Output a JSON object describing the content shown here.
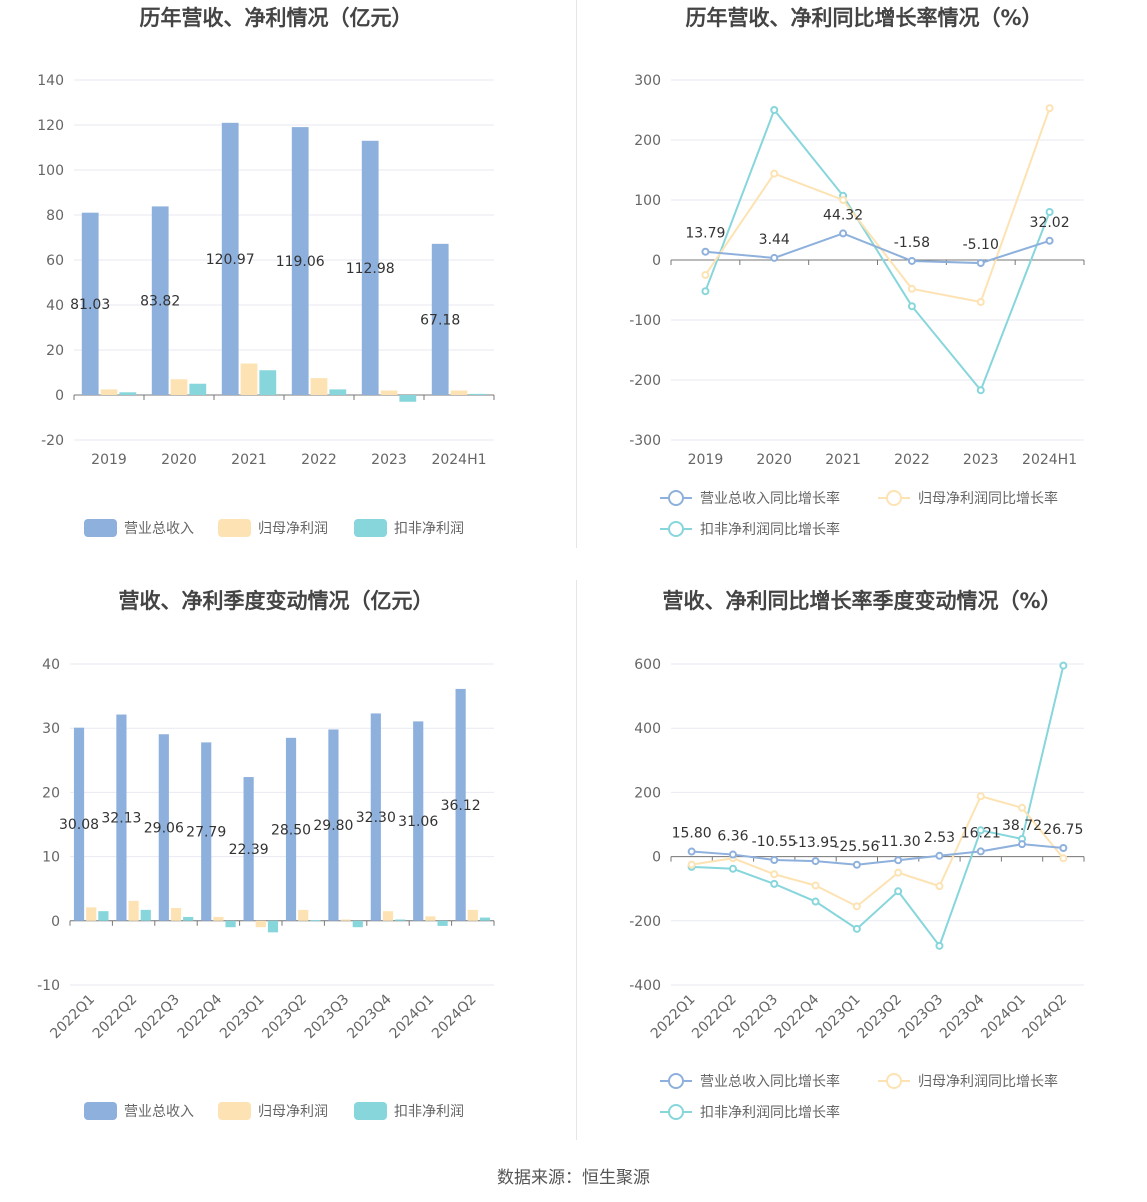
{
  "colors": {
    "revenue": "#8eb0dc",
    "parent_np": "#fde3b3",
    "deducted_np": "#86d6dc"
  },
  "source": "数据来源：恒生聚源",
  "chart_data": [
    {
      "type": "bar",
      "title": "历年营收、净利情况（亿元）",
      "categories": [
        "2019",
        "2020",
        "2021",
        "2022",
        "2023",
        "2024H1"
      ],
      "ylim": [
        -20,
        140
      ],
      "yticks": [
        -20,
        0,
        20,
        40,
        60,
        80,
        100,
        120,
        140
      ],
      "series": [
        {
          "name": "营业总收入",
          "values": [
            81.03,
            83.82,
            120.97,
            119.06,
            112.98,
            67.18
          ],
          "labels": [
            "81.03",
            "83.82",
            "120.97",
            "119.06",
            "112.98",
            "67.18"
          ]
        },
        {
          "name": "归母净利润",
          "values": [
            2.5,
            7.0,
            14.0,
            7.5,
            2.0,
            2.0
          ]
        },
        {
          "name": "扣非净利润",
          "values": [
            1.2,
            5.0,
            11.0,
            2.5,
            -3.0,
            0.5
          ]
        }
      ],
      "legend": "bottom"
    },
    {
      "type": "line",
      "title": "历年营收、净利同比增长率情况（%）",
      "categories": [
        "2019",
        "2020",
        "2021",
        "2022",
        "2023",
        "2024H1"
      ],
      "ylim": [
        -300,
        300
      ],
      "yticks": [
        -300,
        -200,
        -100,
        0,
        100,
        200,
        300
      ],
      "series": [
        {
          "name": "营业总收入同比增长率",
          "values": [
            13.79,
            3.44,
            44.32,
            -1.58,
            -5.1,
            32.02
          ],
          "labels": [
            "13.79",
            "3.44",
            "44.32",
            "-1.58",
            "-5.10",
            "32.02"
          ]
        },
        {
          "name": "归母净利润同比增长率",
          "values": [
            -25,
            144,
            100,
            -48,
            -70,
            253
          ]
        },
        {
          "name": "扣非净利润同比增长率",
          "values": [
            -52,
            250,
            107,
            -77,
            -217,
            80
          ]
        }
      ],
      "legend": "bottom"
    },
    {
      "type": "bar",
      "title": "营收、净利季度变动情况（亿元）",
      "categories": [
        "2022Q1",
        "2022Q2",
        "2022Q3",
        "2022Q4",
        "2023Q1",
        "2023Q2",
        "2023Q3",
        "2023Q4",
        "2024Q1",
        "2024Q2"
      ],
      "ylim": [
        -10,
        40
      ],
      "yticks": [
        -10,
        0,
        10,
        20,
        30,
        40
      ],
      "series": [
        {
          "name": "营业总收入",
          "values": [
            30.08,
            32.13,
            29.06,
            27.79,
            22.39,
            28.5,
            29.8,
            32.3,
            31.06,
            36.12
          ],
          "labels": [
            "30.08",
            "32.13",
            "29.06",
            "27.79",
            "22.39",
            "28.50",
            "29.80",
            "32.30",
            "31.06",
            "36.12"
          ]
        },
        {
          "name": "归母净利润",
          "values": [
            2.1,
            3.1,
            2.0,
            0.6,
            -1.0,
            1.7,
            0.2,
            1.5,
            0.7,
            1.7
          ]
        },
        {
          "name": "扣非净利润",
          "values": [
            1.5,
            1.7,
            0.6,
            -1.0,
            -1.8,
            0.1,
            -1.0,
            0.2,
            -0.8,
            0.5
          ]
        }
      ],
      "legend": "bottom"
    },
    {
      "type": "line",
      "title": "营收、净利同比增长率季度变动情况（%）",
      "categories": [
        "2022Q1",
        "2022Q2",
        "2022Q3",
        "2022Q4",
        "2023Q1",
        "2023Q2",
        "2023Q3",
        "2023Q4",
        "2024Q1",
        "2024Q2"
      ],
      "ylim": [
        -400,
        600
      ],
      "yticks": [
        -400,
        -200,
        0,
        200,
        400,
        600
      ],
      "series": [
        {
          "name": "营业总收入同比增长率",
          "values": [
            15.8,
            6.36,
            -10.55,
            -13.95,
            -25.56,
            -11.3,
            2.53,
            16.21,
            38.72,
            26.75
          ],
          "labels": [
            "15.80",
            "6.36",
            "-10.55",
            "-13.95",
            "-25.56",
            "-11.30",
            "2.53",
            "16.21",
            "38.72",
            "26.75"
          ]
        },
        {
          "name": "归母净利润同比增长率",
          "values": [
            -25,
            -5,
            -55,
            -90,
            -155,
            -50,
            -92,
            188,
            152,
            -5
          ]
        },
        {
          "name": "扣非净利润同比增长率",
          "values": [
            -32,
            -38,
            -85,
            -140,
            -225,
            -108,
            -278,
            82,
            55,
            595
          ]
        }
      ],
      "legend": "bottom"
    }
  ]
}
